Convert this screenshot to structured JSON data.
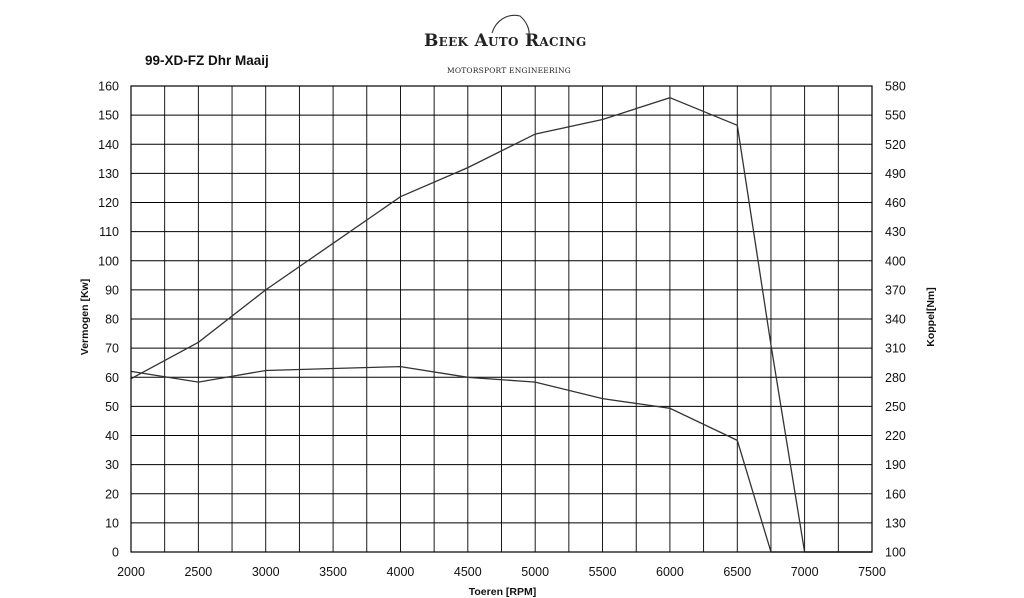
{
  "logo": {
    "name": "Beek Auto Racing",
    "tagline": "MOTORSPORT ENGINEERING"
  },
  "chart_data": {
    "type": "line",
    "title": "99-XD-FZ Dhr Maaij",
    "xlabel": "Toeren [RPM]",
    "ylabel": "Vermogen [Kw]",
    "y2label": "Koppel[Nm]",
    "xlim": [
      2000,
      7500
    ],
    "ylim": [
      0,
      160
    ],
    "y2lim": [
      100,
      580
    ],
    "x_ticks": [
      2000,
      2500,
      3000,
      3500,
      4000,
      4500,
      5000,
      5500,
      6000,
      6500,
      7000,
      7500
    ],
    "y_ticks": [
      0,
      10,
      20,
      30,
      40,
      50,
      60,
      70,
      80,
      90,
      100,
      110,
      120,
      130,
      140,
      150,
      160
    ],
    "y2_ticks": [
      100,
      130,
      160,
      190,
      220,
      250,
      280,
      310,
      340,
      370,
      400,
      430,
      460,
      490,
      520,
      550,
      580
    ],
    "grid": true,
    "series": [
      {
        "axis": "left",
        "color": "#333333",
        "x": [
          2000,
          2500,
          3000,
          3500,
          4000,
          4500,
          5000,
          5500,
          6000,
          6500,
          6750,
          7000,
          7500
        ],
        "y": [
          59.5,
          72,
          90,
          106,
          122,
          132,
          143.5,
          148.5,
          156,
          146.5,
          71,
          0,
          0
        ]
      },
      {
        "axis": "right",
        "color": "#333333",
        "x": [
          2000,
          2500,
          3000,
          3500,
          4000,
          4500,
          5000,
          5500,
          6000,
          6500,
          6750,
          7000,
          7500
        ],
        "y": [
          286,
          275,
          287,
          289,
          291,
          280,
          275,
          258,
          248,
          215,
          100,
          100,
          100
        ]
      }
    ]
  }
}
